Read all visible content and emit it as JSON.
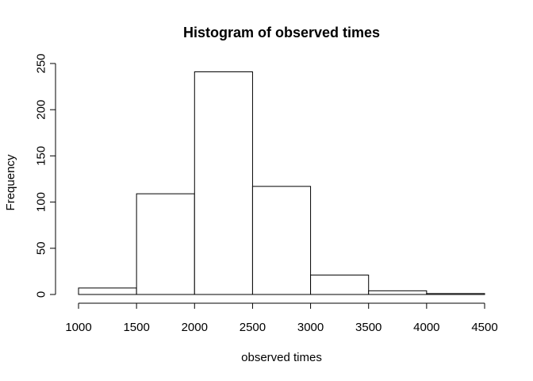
{
  "chart_data": {
    "type": "bar",
    "title": "Histogram of observed times",
    "xlabel": "observed times",
    "ylabel": "Frequency",
    "bins": [
      {
        "start": 1000,
        "end": 1500,
        "count": 7
      },
      {
        "start": 1500,
        "end": 2000,
        "count": 109
      },
      {
        "start": 2000,
        "end": 2500,
        "count": 241
      },
      {
        "start": 2500,
        "end": 3000,
        "count": 117
      },
      {
        "start": 3000,
        "end": 3500,
        "count": 21
      },
      {
        "start": 3500,
        "end": 4000,
        "count": 4
      },
      {
        "start": 4000,
        "end": 4500,
        "count": 1
      }
    ],
    "xlim": [
      1000,
      4500
    ],
    "ylim": [
      0,
      250
    ],
    "x_ticks": [
      "1000",
      "1500",
      "2000",
      "2500",
      "3000",
      "3500",
      "4000",
      "4500"
    ],
    "y_ticks": [
      "0",
      "50",
      "100",
      "150",
      "200",
      "250"
    ],
    "grid": false,
    "bar_fill": "#ffffff",
    "bar_stroke": "#000000"
  }
}
